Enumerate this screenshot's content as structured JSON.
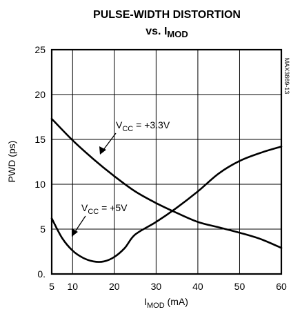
{
  "chart_data": {
    "type": "line",
    "title": "PULSE-WIDTH DISTORTION",
    "subtitle": {
      "prefix": "vs. I",
      "sub": "MOD"
    },
    "xlabel": {
      "main": "I",
      "sub": "MOD",
      "suffix": " (mA)"
    },
    "ylabel": "PWD (ps)",
    "xlim": [
      5,
      60
    ],
    "ylim": [
      0,
      25
    ],
    "x_ticks": [
      5,
      10,
      20,
      30,
      40,
      50,
      60
    ],
    "x_tick_labels": [
      "5",
      "10",
      "20",
      "30",
      "40",
      "50",
      "60"
    ],
    "y_ticks": [
      0,
      5,
      10,
      15,
      20,
      25
    ],
    "y_tick_labels": [
      "0.",
      "5",
      "10",
      "15",
      "20",
      "25"
    ],
    "grid": true,
    "figure_code": "MAX3869-13",
    "series": [
      {
        "name": "VCC = +3.3V",
        "label": {
          "main": "V",
          "sub": "CC",
          "suffix": " =  +3.3V"
        },
        "x": [
          5,
          10,
          15,
          20,
          25,
          30,
          35,
          40,
          45,
          50,
          55,
          60
        ],
        "y": [
          17.3,
          14.9,
          12.8,
          10.9,
          9.2,
          7.9,
          6.8,
          5.8,
          5.2,
          4.6,
          3.9,
          2.9
        ]
      },
      {
        "name": "VCC = +5V",
        "label": {
          "main": "V",
          "sub": "CC",
          "suffix": " = +5V"
        },
        "x": [
          5,
          7.5,
          10,
          12.5,
          15,
          17.5,
          20,
          22.5,
          25,
          30,
          35,
          40,
          45,
          50,
          55,
          60
        ],
        "y": [
          6.2,
          4.0,
          2.6,
          1.8,
          1.4,
          1.4,
          1.9,
          2.9,
          4.4,
          5.8,
          7.4,
          9.2,
          11.2,
          12.6,
          13.5,
          14.2
        ]
      }
    ]
  }
}
